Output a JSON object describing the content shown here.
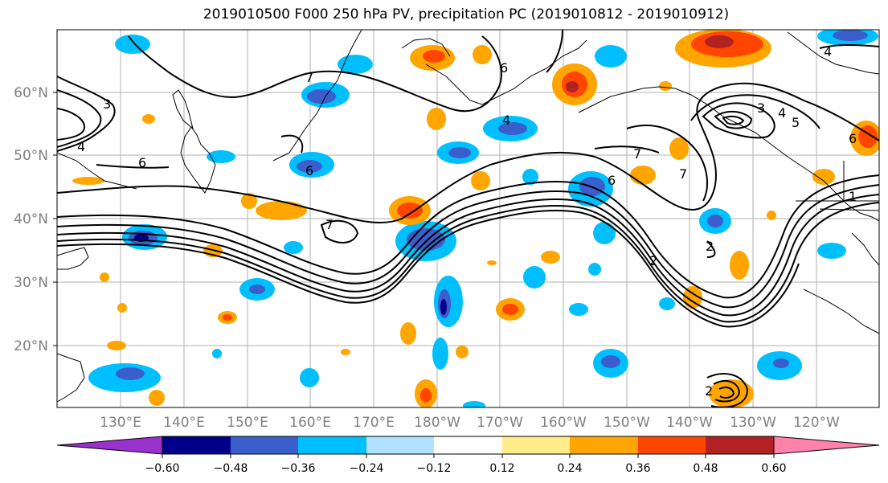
{
  "title": "2019010500 F000 250 hPa PV, precipitation PC (2019010812 - 2019010912)",
  "map": {
    "lat_labels": [
      "60°N",
      "50°N",
      "40°N",
      "30°N",
      "20°N"
    ],
    "lon_labels": [
      "130°E",
      "140°E",
      "150°E",
      "160°E",
      "170°E",
      "180°W",
      "170°W",
      "160°W",
      "150°W",
      "140°W",
      "130°W",
      "120°W"
    ],
    "contour_labels": [
      "3",
      "4",
      "6",
      "7",
      "6",
      "7",
      "4",
      "6",
      "7",
      "6",
      "7",
      "2",
      "3",
      "4",
      "5",
      "6",
      "1",
      "2",
      "4",
      "2"
    ]
  },
  "colorbar": {
    "ticks": [
      "−0.60",
      "−0.48",
      "−0.36",
      "−0.24",
      "−0.12",
      "0.12",
      "0.24",
      "0.36",
      "0.48",
      "0.60"
    ],
    "colors": [
      "#9932cc",
      "#00008b",
      "#3a5fcd",
      "#00bfff",
      "#b0e2ff",
      "#ffffff",
      "#ffec8b",
      "#ffa500",
      "#ff4500",
      "#b22222",
      "#ff82ab"
    ]
  }
}
